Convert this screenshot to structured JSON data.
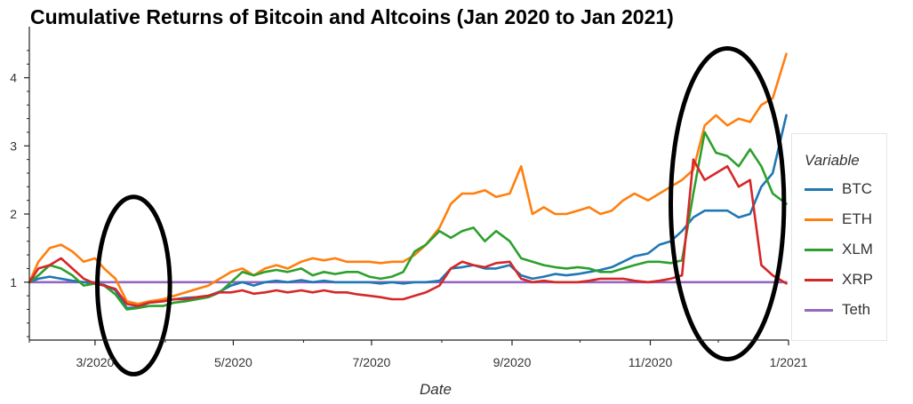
{
  "title": "Cumulative Returns of Bitcoin and Altcoins (Jan 2020 to Jan 2021)",
  "colors": {
    "BTC": "#1f77b4",
    "ETH": "#ff7f0e",
    "XLM": "#2ca02c",
    "XRP": "#d62728",
    "Teth": "#9467bd",
    "annotation": "#000000"
  },
  "chart_data": {
    "type": "line",
    "title": "Cumulative Returns of Bitcoin and Altcoins (Jan 2020 to Jan 2021)",
    "xlabel": "Date",
    "ylabel": "",
    "xlim": [
      "2020-02-01",
      "2021-01-01"
    ],
    "ylim": [
      0.15,
      4.75
    ],
    "x_ticks": [
      "3/2020",
      "5/2020",
      "7/2020",
      "9/2020",
      "11/2020",
      "1/2021"
    ],
    "y_ticks": [
      1,
      2,
      3,
      4
    ],
    "grid": false,
    "legend": {
      "title": "Variable",
      "position": "right"
    },
    "x": [
      "2020-02-01",
      "2020-02-05",
      "2020-02-10",
      "2020-02-15",
      "2020-02-20",
      "2020-02-25",
      "2020-03-01",
      "2020-03-05",
      "2020-03-10",
      "2020-03-15",
      "2020-03-20",
      "2020-03-25",
      "2020-03-31",
      "2020-04-05",
      "2020-04-10",
      "2020-04-15",
      "2020-04-20",
      "2020-04-25",
      "2020-04-30",
      "2020-05-05",
      "2020-05-10",
      "2020-05-15",
      "2020-05-20",
      "2020-05-25",
      "2020-05-31",
      "2020-06-05",
      "2020-06-10",
      "2020-06-15",
      "2020-06-20",
      "2020-06-25",
      "2020-06-30",
      "2020-07-05",
      "2020-07-10",
      "2020-07-15",
      "2020-07-20",
      "2020-07-25",
      "2020-07-31",
      "2020-08-05",
      "2020-08-10",
      "2020-08-15",
      "2020-08-20",
      "2020-08-25",
      "2020-08-31",
      "2020-09-05",
      "2020-09-10",
      "2020-09-15",
      "2020-09-20",
      "2020-09-25",
      "2020-09-30",
      "2020-10-05",
      "2020-10-10",
      "2020-10-15",
      "2020-10-20",
      "2020-10-25",
      "2020-10-31",
      "2020-11-05",
      "2020-11-10",
      "2020-11-15",
      "2020-11-20",
      "2020-11-25",
      "2020-11-30",
      "2020-12-05",
      "2020-12-10",
      "2020-12-15",
      "2020-12-20",
      "2020-12-25",
      "2020-12-31"
    ],
    "series": [
      {
        "name": "BTC",
        "values": [
          1.0,
          1.05,
          1.08,
          1.05,
          1.02,
          1.0,
          0.98,
          0.96,
          0.88,
          0.62,
          0.63,
          0.7,
          0.72,
          0.75,
          0.77,
          0.78,
          0.8,
          0.86,
          0.95,
          1.0,
          0.95,
          1.0,
          1.02,
          1.0,
          1.03,
          1.0,
          1.02,
          1.0,
          1.0,
          1.0,
          1.0,
          0.98,
          1.0,
          0.98,
          1.0,
          1.0,
          1.02,
          1.2,
          1.22,
          1.25,
          1.2,
          1.2,
          1.25,
          1.1,
          1.05,
          1.08,
          1.12,
          1.1,
          1.12,
          1.15,
          1.18,
          1.22,
          1.3,
          1.38,
          1.42,
          1.55,
          1.6,
          1.75,
          1.95,
          2.05,
          2.05,
          2.05,
          1.95,
          2.0,
          2.4,
          2.6,
          3.45
        ]
      },
      {
        "name": "ETH",
        "values": [
          1.0,
          1.3,
          1.5,
          1.55,
          1.45,
          1.3,
          1.35,
          1.2,
          1.05,
          0.72,
          0.68,
          0.72,
          0.75,
          0.8,
          0.85,
          0.9,
          0.95,
          1.05,
          1.15,
          1.2,
          1.1,
          1.2,
          1.25,
          1.2,
          1.3,
          1.35,
          1.32,
          1.35,
          1.3,
          1.3,
          1.3,
          1.28,
          1.3,
          1.3,
          1.4,
          1.55,
          1.8,
          2.15,
          2.3,
          2.3,
          2.35,
          2.25,
          2.3,
          2.7,
          2.0,
          2.1,
          2.0,
          2.0,
          2.05,
          2.1,
          2.0,
          2.05,
          2.2,
          2.3,
          2.2,
          2.3,
          2.4,
          2.5,
          2.65,
          3.3,
          3.45,
          3.3,
          3.4,
          3.35,
          3.6,
          3.7,
          4.35
        ]
      },
      {
        "name": "XLM",
        "values": [
          1.0,
          1.1,
          1.25,
          1.2,
          1.1,
          0.95,
          0.98,
          0.95,
          0.82,
          0.6,
          0.62,
          0.65,
          0.65,
          0.7,
          0.72,
          0.75,
          0.78,
          0.85,
          1.0,
          1.15,
          1.1,
          1.15,
          1.18,
          1.15,
          1.2,
          1.1,
          1.15,
          1.12,
          1.15,
          1.15,
          1.08,
          1.05,
          1.08,
          1.15,
          1.45,
          1.55,
          1.75,
          1.65,
          1.75,
          1.8,
          1.6,
          1.75,
          1.6,
          1.35,
          1.3,
          1.25,
          1.22,
          1.2,
          1.22,
          1.2,
          1.15,
          1.15,
          1.2,
          1.25,
          1.3,
          1.3,
          1.28,
          1.32,
          2.3,
          3.2,
          2.9,
          2.85,
          2.7,
          2.95,
          2.7,
          2.3,
          2.15
        ]
      },
      {
        "name": "XRP",
        "values": [
          1.0,
          1.2,
          1.25,
          1.35,
          1.2,
          1.05,
          0.98,
          0.95,
          0.9,
          0.68,
          0.65,
          0.7,
          0.72,
          0.75,
          0.75,
          0.78,
          0.8,
          0.85,
          0.85,
          0.88,
          0.83,
          0.85,
          0.88,
          0.85,
          0.88,
          0.85,
          0.88,
          0.85,
          0.85,
          0.82,
          0.8,
          0.78,
          0.75,
          0.75,
          0.8,
          0.85,
          0.95,
          1.2,
          1.3,
          1.25,
          1.22,
          1.28,
          1.3,
          1.05,
          1.0,
          1.02,
          1.0,
          1.0,
          1.0,
          1.02,
          1.05,
          1.05,
          1.05,
          1.02,
          1.0,
          1.02,
          1.05,
          1.1,
          2.8,
          2.5,
          2.6,
          2.7,
          2.4,
          2.5,
          1.25,
          1.1,
          0.98
        ]
      },
      {
        "name": "Teth",
        "values": [
          1.0,
          1.0,
          1.0,
          1.0,
          1.0,
          1.0,
          1.0,
          1.0,
          1.0,
          1.0,
          1.0,
          1.0,
          1.0,
          1.0,
          1.0,
          1.0,
          1.0,
          1.0,
          1.0,
          1.0,
          1.0,
          1.0,
          1.0,
          1.0,
          1.0,
          1.0,
          1.0,
          1.0,
          1.0,
          1.0,
          1.0,
          1.0,
          1.0,
          1.0,
          1.0,
          1.0,
          1.0,
          1.0,
          1.0,
          1.0,
          1.0,
          1.0,
          1.0,
          1.0,
          1.0,
          1.0,
          1.0,
          1.0,
          1.0,
          1.0,
          1.0,
          1.0,
          1.0,
          1.0,
          1.0,
          1.0,
          1.0,
          1.0,
          1.0,
          1.0,
          1.0,
          1.0,
          1.0,
          1.0,
          1.0,
          1.0,
          1.0
        ]
      }
    ],
    "annotations": [
      {
        "type": "ellipse",
        "label": "",
        "center": [
          "2020-03-18",
          0.95
        ],
        "radius_days": 16,
        "radius_y": 1.3
      },
      {
        "type": "ellipse",
        "label": "",
        "center": [
          "2020-12-05",
          2.15
        ],
        "radius_days": 25,
        "radius_y": 2.28
      }
    ]
  }
}
